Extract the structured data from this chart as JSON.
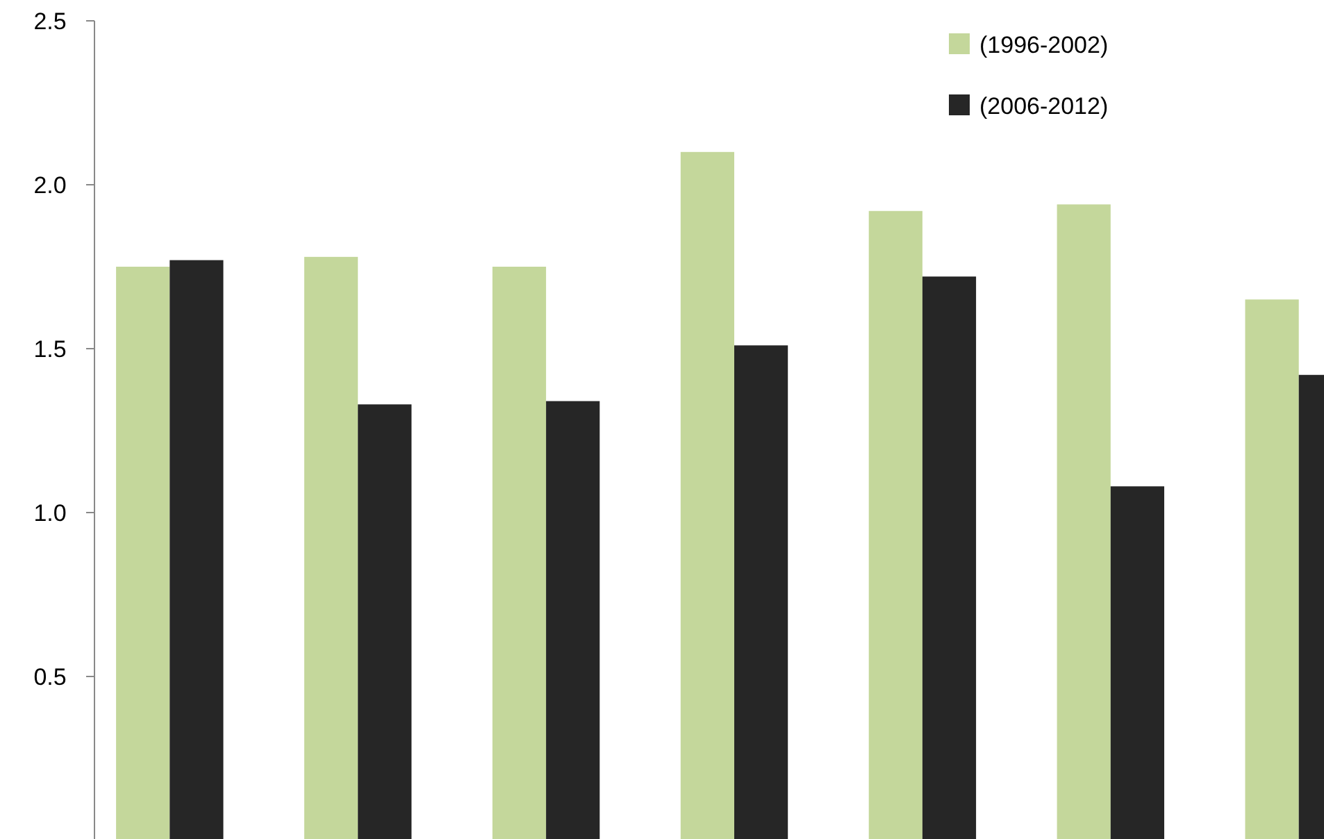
{
  "chart_data": {
    "type": "bar",
    "categories": [
      null,
      null,
      null,
      null,
      null,
      null,
      null
    ],
    "series": [
      {
        "name": "(1996-2002)",
        "color": "#c4d79b",
        "values": [
          1.75,
          1.78,
          1.75,
          2.1,
          1.92,
          1.94,
          1.65
        ]
      },
      {
        "name": "(2006-2012)",
        "color": "#262626",
        "values": [
          1.77,
          1.33,
          1.34,
          1.51,
          1.72,
          1.08,
          1.42
        ]
      }
    ],
    "ylim": [
      0,
      2.5
    ],
    "yticks": [
      {
        "value": 0.5,
        "label": "0.5"
      },
      {
        "value": 1,
        "label": "1.0"
      },
      {
        "value": 1.5,
        "label": "1.5"
      },
      {
        "value": 2,
        "label": "2.0"
      },
      {
        "value": 2.5,
        "label": "2.5"
      }
    ],
    "grid": false,
    "legend": "top right"
  }
}
